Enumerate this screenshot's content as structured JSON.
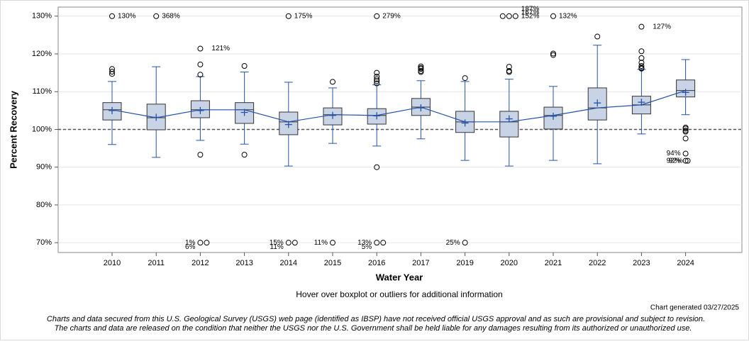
{
  "chart_data": {
    "type": "boxplot",
    "xlabel": "Water Year",
    "ylabel": "Percent Recovery",
    "note": "Hover over boxplot or outliers for additional information",
    "generated": "Chart generated 03/27/2025",
    "disclaimer": [
      "Charts and data secured from this U.S. Geological Survey (USGS) web page (identified as IBSP) have not received official USGS approval and as such are provisional and subject to revision.",
      "The charts and data are released on the condition that neither the USGS nor the U.S. Government shall be held liable for any damages resulting from its authorized or unauthorized use."
    ],
    "categories": [
      "2010",
      "2011",
      "2012",
      "2013",
      "2014",
      "2015",
      "2016",
      "2017",
      "2019",
      "2020",
      "2021",
      "2022",
      "2023",
      "2024"
    ],
    "ylim": [
      67.4,
      132.4
    ],
    "yticks": [
      {
        "value": 70,
        "label": "70%"
      },
      {
        "value": 80,
        "label": "80%"
      },
      {
        "value": 90,
        "label": "90%"
      },
      {
        "value": 100,
        "label": "100%"
      },
      {
        "value": 110,
        "label": "110%"
      },
      {
        "value": 120,
        "label": "120%"
      },
      {
        "value": 130,
        "label": "130%"
      }
    ],
    "grid": true,
    "reference_line": 100,
    "offscale_high": 130,
    "offscale_low": 70,
    "box_color": "#c8d3e6",
    "line_color": "#2553a8",
    "boxes": [
      {
        "whisker_low": 96.0,
        "q1": 102.5,
        "median": 105.2,
        "q3": 107.1,
        "whisker_high": 112.7,
        "mean": 105.0,
        "outliers": [
          116.0,
          115.3,
          114.7
        ],
        "high_labels": [
          "130%"
        ]
      },
      {
        "whisker_low": 92.6,
        "q1": 99.9,
        "median": 103.1,
        "q3": 106.7,
        "whisker_high": 116.6,
        "mean": 103.2,
        "high_labels": [
          "368%"
        ]
      },
      {
        "whisker_low": 97.1,
        "q1": 103.1,
        "median": 105.2,
        "q3": 107.6,
        "whisker_high": 114.0,
        "mean": 105.0,
        "outliers": [
          121.4,
          117.2,
          114.5,
          93.3
        ],
        "outlier_labels": [
          "121%",
          null,
          null,
          null
        ],
        "low_labels": [
          "1%",
          "6%"
        ]
      },
      {
        "whisker_low": 96.1,
        "q1": 101.6,
        "median": 105.2,
        "q3": 107.1,
        "whisker_high": 115.2,
        "mean": 104.5,
        "outliers": [
          116.8,
          93.3
        ]
      },
      {
        "whisker_low": 90.3,
        "q1": 98.6,
        "median": 102.0,
        "q3": 104.6,
        "whisker_high": 112.5,
        "mean": 101.3,
        "high_labels": [
          "175%"
        ],
        "low_labels": [
          "15%",
          "11%"
        ]
      },
      {
        "whisker_low": 96.3,
        "q1": 101.2,
        "median": 103.9,
        "q3": 105.7,
        "whisker_high": 111.0,
        "mean": 103.7,
        "outliers": [
          112.6
        ],
        "low_labels": [
          "11%"
        ]
      },
      {
        "whisker_low": 95.6,
        "q1": 101.4,
        "median": 103.7,
        "q3": 105.5,
        "whisker_high": 111.8,
        "mean": 103.6,
        "outliers": [
          115.0,
          114.0,
          113.3,
          112.8,
          112.2,
          90.0
        ],
        "high_labels": [
          "279%"
        ],
        "low_labels": [
          "13%",
          "5%"
        ]
      },
      {
        "whisker_low": 97.5,
        "q1": 103.7,
        "median": 105.9,
        "q3": 108.2,
        "whisker_high": 112.9,
        "mean": 105.7,
        "outliers": [
          116.7,
          116.3,
          116.0,
          115.5,
          115.2
        ]
      },
      {
        "whisker_low": 91.8,
        "q1": 99.2,
        "median": 102.0,
        "q3": 104.8,
        "whisker_high": 112.7,
        "mean": 101.7,
        "outliers": [
          113.6
        ],
        "low_labels": [
          "25%"
        ]
      },
      {
        "whisker_low": 90.3,
        "q1": 98.0,
        "median": 102.0,
        "q3": 104.8,
        "whisker_high": 113.3,
        "mean": 102.8,
        "outliers": [
          116.6,
          115.5,
          115.2
        ],
        "high_labels": [
          "152%",
          "167%",
          "187%"
        ]
      },
      {
        "whisker_low": 91.8,
        "q1": 100.1,
        "median": 103.7,
        "q3": 105.9,
        "whisker_high": 111.4,
        "mean": 103.5,
        "outliers": [
          120.1,
          119.7
        ],
        "high_labels": [
          "132%"
        ]
      },
      {
        "whisker_low": 90.9,
        "q1": 102.5,
        "median": 105.7,
        "q3": 111.0,
        "whisker_high": 122.3,
        "mean": 107.0,
        "outliers": [
          124.6
        ]
      },
      {
        "whisker_low": 98.8,
        "q1": 104.1,
        "median": 106.5,
        "q3": 108.8,
        "whisker_high": 115.9,
        "mean": 107.2,
        "outliers": [
          127.2,
          120.7,
          118.9,
          117.7,
          116.8,
          116.3,
          116.1
        ],
        "outlier_labels": [
          "127%",
          null,
          null,
          null,
          null,
          null,
          null
        ]
      },
      {
        "whisker_low": 103.9,
        "q1": 108.6,
        "median": 110.3,
        "q3": 113.1,
        "whisker_high": 118.5,
        "mean": 109.8,
        "outliers": [
          100.5,
          100.2,
          99.7,
          99.4,
          97.6,
          93.6,
          91.7,
          91.7
        ],
        "outlier_labels": [
          null,
          null,
          null,
          null,
          null,
          "94%",
          "92%",
          "92%"
        ]
      }
    ]
  }
}
